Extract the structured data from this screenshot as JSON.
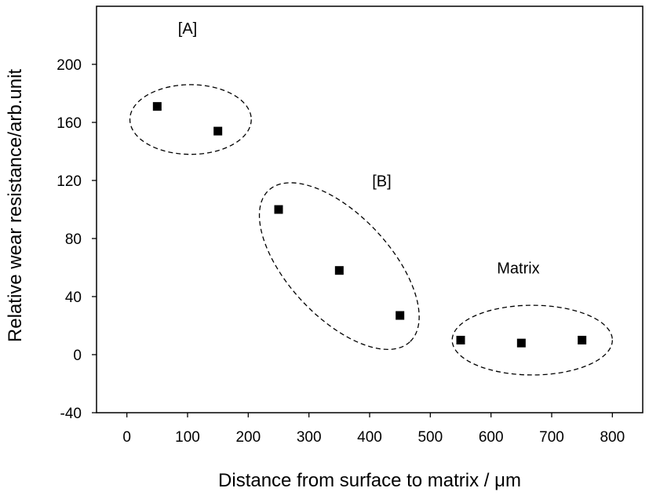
{
  "chart_data": {
    "type": "scatter",
    "title": "",
    "xlabel": "Distance from surface to matrix / μm",
    "ylabel": "Relative wear resistance/arb.unit",
    "xlim": [
      -50,
      850
    ],
    "ylim": [
      -40,
      240
    ],
    "xticks": [
      0,
      100,
      200,
      300,
      400,
      500,
      600,
      700,
      800
    ],
    "yticks": [
      -40,
      0,
      40,
      80,
      120,
      160,
      200
    ],
    "xtick_labels": [
      "0",
      "100",
      "200",
      "300",
      "400",
      "500",
      "600",
      "700",
      "800"
    ],
    "ytick_labels": [
      "-40",
      "0",
      "40",
      "80",
      "120",
      "160",
      "200"
    ],
    "grid": false,
    "legend": "none",
    "marker": "filled-square",
    "marker_color": "#000000",
    "series": [
      {
        "points": [
          [
            50,
            171
          ],
          [
            150,
            154
          ],
          [
            250,
            100
          ],
          [
            350,
            58
          ],
          [
            450,
            27
          ],
          [
            550,
            10
          ],
          [
            650,
            8
          ],
          [
            750,
            10
          ]
        ]
      }
    ],
    "groups": [
      {
        "label": "[A]",
        "label_at": [
          100,
          221
        ],
        "ellipse": {
          "cx": 105,
          "cy": 162,
          "rx": 100,
          "ry": 24,
          "rotation": 0
        }
      },
      {
        "label": "[B]",
        "label_at": [
          420,
          116
        ],
        "ellipse": {
          "cx": 350,
          "cy": 61,
          "rx": 175,
          "ry": 45,
          "rotation": 0
        }
      },
      {
        "label": "Matrix",
        "label_at": [
          645,
          56
        ],
        "ellipse": {
          "cx": 668,
          "cy": 10,
          "rx": 132,
          "ry": 24,
          "rotation": 0
        }
      }
    ]
  }
}
